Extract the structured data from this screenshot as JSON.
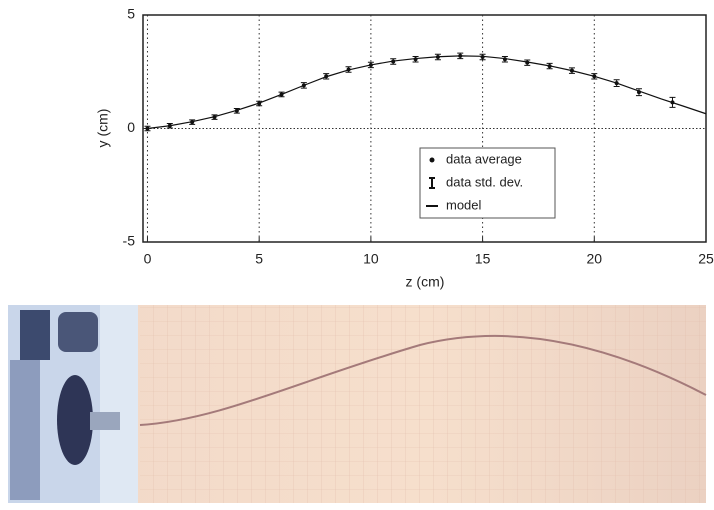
{
  "chart_data": {
    "type": "scatter",
    "xlabel": "z (cm)",
    "ylabel": "y (cm)",
    "xlim": [
      -0.2,
      25
    ],
    "ylim": [
      -5,
      5
    ],
    "xticks": [
      0,
      5,
      10,
      15,
      20,
      25
    ],
    "yticks": [
      -5,
      0,
      5
    ],
    "grid": true,
    "legend": "center",
    "series": [
      {
        "name": "data average",
        "color": "#111",
        "x": [
          0,
          1,
          2,
          3,
          4,
          5,
          6,
          7,
          8,
          9,
          10,
          11,
          12,
          13,
          14,
          15,
          16,
          17,
          18,
          19,
          20,
          21,
          22,
          23.5
        ],
        "values": [
          0.0,
          0.12,
          0.28,
          0.5,
          0.78,
          1.1,
          1.5,
          1.9,
          2.3,
          2.6,
          2.8,
          2.95,
          3.05,
          3.15,
          3.2,
          3.15,
          3.05,
          2.9,
          2.75,
          2.55,
          2.3,
          2.0,
          1.6,
          1.15
        ]
      },
      {
        "name": "data std. dev.",
        "color": "#111",
        "errors": [
          0.1,
          0.1,
          0.1,
          0.1,
          0.1,
          0.1,
          0.1,
          0.12,
          0.12,
          0.12,
          0.12,
          0.12,
          0.12,
          0.12,
          0.12,
          0.12,
          0.12,
          0.12,
          0.12,
          0.12,
          0.12,
          0.15,
          0.15,
          0.22
        ]
      },
      {
        "name": "model",
        "color": "#111",
        "x": [
          0,
          1,
          2,
          3,
          4,
          5,
          6,
          7,
          8,
          9,
          10,
          11,
          12,
          13,
          14,
          15,
          16,
          17,
          18,
          19,
          20,
          21,
          22,
          23,
          24,
          25
        ],
        "values": [
          0.0,
          0.12,
          0.3,
          0.52,
          0.8,
          1.12,
          1.5,
          1.9,
          2.28,
          2.58,
          2.8,
          2.97,
          3.08,
          3.16,
          3.2,
          3.18,
          3.08,
          2.93,
          2.76,
          2.55,
          2.3,
          2.0,
          1.65,
          1.3,
          0.98,
          0.65
        ]
      }
    ]
  }
}
